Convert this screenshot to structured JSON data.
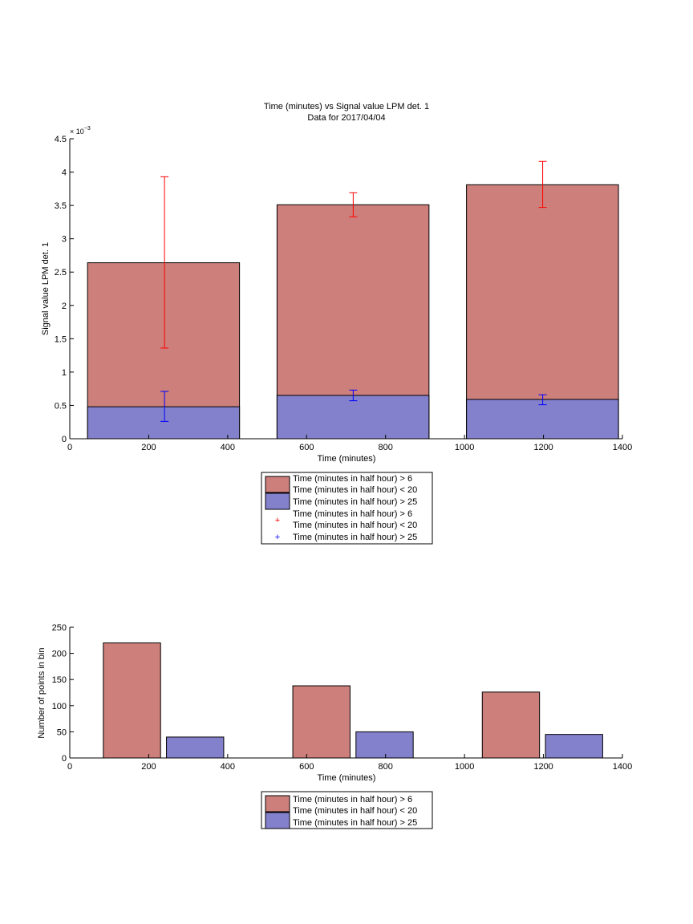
{
  "colors": {
    "red_bar": "#cc7f7b",
    "blue_bar": "#8380cc",
    "red_err": "#ff0000",
    "blue_err": "#0000ff"
  },
  "chart_data": [
    {
      "type": "bar",
      "title": "Time (minutes) vs Signal value LPM det. 1",
      "subtitle": "Data for 2017/04/04",
      "xlabel": "Time (minutes)",
      "ylabel": "Signal value LPM det. 1",
      "xlim": [
        0,
        1400
      ],
      "ylim": [
        0,
        4.5
      ],
      "y_multiplier": "× 10",
      "y_exponent": "−3",
      "xticks": [
        0,
        200,
        400,
        600,
        800,
        1000,
        1200,
        1400
      ],
      "yticks": [
        0,
        0.5,
        1,
        1.5,
        2,
        2.5,
        3,
        3.5,
        4,
        4.5
      ],
      "bars": [
        {
          "x_from": 45,
          "x_to": 430,
          "red": 2.64,
          "blue": 0.48
        },
        {
          "x_from": 525,
          "x_to": 910,
          "red": 3.51,
          "blue": 0.65
        },
        {
          "x_from": 1005,
          "x_to": 1390,
          "red": 3.81,
          "blue": 0.59
        }
      ],
      "errorbars_red": [
        {
          "x": 240,
          "y": 2.64,
          "low": 1.36,
          "high": 3.93
        },
        {
          "x": 718,
          "y": 3.51,
          "low": 3.33,
          "high": 3.69
        },
        {
          "x": 1198,
          "y": 3.81,
          "low": 3.47,
          "high": 4.16
        }
      ],
      "errorbars_blue": [
        {
          "x": 240,
          "y": 0.48,
          "low": 0.26,
          "high": 0.71
        },
        {
          "x": 718,
          "y": 0.65,
          "low": 0.57,
          "high": 0.73
        },
        {
          "x": 1198,
          "y": 0.59,
          "low": 0.51,
          "high": 0.66
        }
      ],
      "legend": [
        "Time (minutes in half hour) > 6",
        "Time (minutes in half hour) < 20",
        "Time (minutes in half hour) > 25",
        "Time (minutes in half hour) > 6",
        "Time (minutes in half hour) < 20",
        "Time (minutes in half hour) > 25"
      ],
      "legend_placement": "below"
    },
    {
      "type": "bar",
      "xlabel": "Time (minutes)",
      "ylabel": "Number of points in bin",
      "xlim": [
        0,
        1400
      ],
      "ylim": [
        0,
        250
      ],
      "xticks": [
        0,
        200,
        400,
        600,
        800,
        1000,
        1200,
        1400
      ],
      "yticks": [
        0,
        50,
        100,
        150,
        200,
        250
      ],
      "series": [
        {
          "color": "red",
          "bars": [
            {
              "x_from": 85,
              "x_to": 230,
              "value": 220
            },
            {
              "x_from": 565,
              "x_to": 710,
              "value": 138
            },
            {
              "x_from": 1045,
              "x_to": 1190,
              "value": 126
            }
          ]
        },
        {
          "color": "blue",
          "bars": [
            {
              "x_from": 245,
              "x_to": 390,
              "value": 40
            },
            {
              "x_from": 725,
              "x_to": 870,
              "value": 50
            },
            {
              "x_from": 1205,
              "x_to": 1350,
              "value": 45
            }
          ]
        }
      ],
      "legend": [
        "Time (minutes in half hour) > 6",
        "Time (minutes in half hour) < 20",
        "Time (minutes in half hour) > 25"
      ],
      "legend_placement": "below"
    }
  ]
}
